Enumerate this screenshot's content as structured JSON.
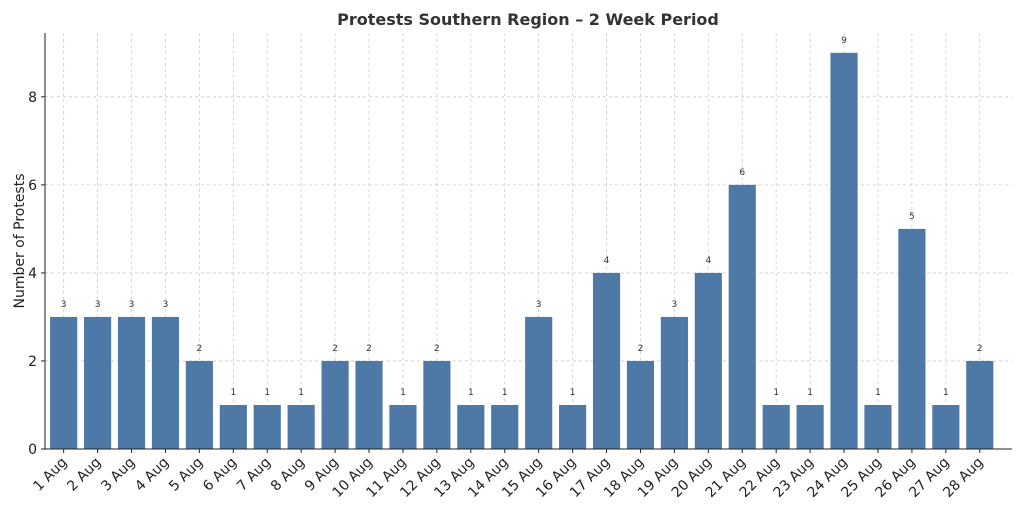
{
  "chart_data": {
    "type": "bar",
    "title": "Protests Southern Region – 2 Week Period",
    "xlabel": "",
    "ylabel": "Number of Protests",
    "categories": [
      "1 Aug",
      "2 Aug",
      "3 Aug",
      "4 Aug",
      "5 Aug",
      "6 Aug",
      "7 Aug",
      "8 Aug",
      "9 Aug",
      "10 Aug",
      "11 Aug",
      "12 Aug",
      "13 Aug",
      "14 Aug",
      "15 Aug",
      "16 Aug",
      "17 Aug",
      "18 Aug",
      "19 Aug",
      "20 Aug",
      "21 Aug",
      "22 Aug",
      "23 Aug",
      "24 Aug",
      "25 Aug",
      "26 Aug",
      "27 Aug",
      "28 Aug"
    ],
    "values": [
      3,
      3,
      3,
      3,
      2,
      1,
      1,
      1,
      2,
      2,
      1,
      2,
      1,
      1,
      3,
      1,
      4,
      2,
      3,
      4,
      6,
      1,
      1,
      9,
      1,
      5,
      1,
      2
    ],
    "yticks": [
      0,
      2,
      4,
      6,
      8
    ],
    "ylim": [
      0,
      9.45
    ],
    "grid": true,
    "bar_color": "#4e79a7"
  }
}
